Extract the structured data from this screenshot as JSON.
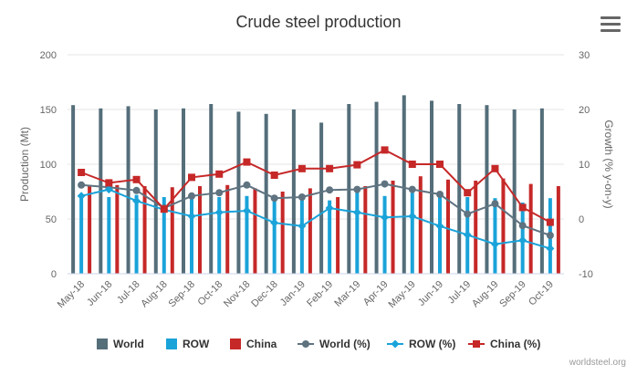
{
  "chart_data": {
    "type": "bar",
    "title": "Crude steel production",
    "ylabel": "Production (Mt)",
    "y2label": "Growth (% y-on-y)",
    "ylim": [
      0,
      200
    ],
    "yticks": [
      0,
      50,
      100,
      150,
      200
    ],
    "y2lim": [
      -10,
      30
    ],
    "y2ticks": [
      -10,
      0,
      10,
      20,
      30
    ],
    "categories": [
      "May-18",
      "Jun-18",
      "Jul-18",
      "Aug-18",
      "Sep-18",
      "Oct-18",
      "Nov-18",
      "Dec-18",
      "Jan-19",
      "Feb-19",
      "Mar-19",
      "Apr-19",
      "May-19",
      "Jun-19",
      "Jul-19",
      "Aug-19",
      "Sep-19",
      "Oct-19"
    ],
    "grid": true,
    "legend_placement": "bottom",
    "series": [
      {
        "name": "World",
        "kind": "bar",
        "axis": "left",
        "color": "#546e7a",
        "values": [
          154,
          151,
          153,
          150,
          151,
          155,
          148,
          146,
          150,
          138,
          155,
          157,
          163,
          158,
          155,
          154,
          150,
          151
        ]
      },
      {
        "name": "ROW",
        "kind": "bar",
        "axis": "left",
        "color": "#1aa3d9",
        "values": [
          71,
          70,
          72,
          70,
          68,
          70,
          71,
          70,
          70,
          67,
          76,
          71,
          74,
          73,
          70,
          69,
          65,
          69
        ]
      },
      {
        "name": "China",
        "kind": "bar",
        "axis": "left",
        "color": "#c62828",
        "values": [
          81,
          81,
          80,
          79,
          80,
          81,
          78,
          75,
          78,
          70,
          80,
          85,
          89,
          86,
          85,
          87,
          82,
          80
        ]
      },
      {
        "name": "World (%)",
        "kind": "line",
        "axis": "right",
        "color": "#5f7380",
        "marker": "circle",
        "values": [
          6.2,
          5.8,
          5.2,
          2.0,
          4.2,
          4.8,
          6.2,
          3.8,
          4.0,
          5.3,
          5.4,
          6.4,
          5.4,
          4.5,
          0.9,
          2.8,
          -1.2,
          -3.0
        ]
      },
      {
        "name": "ROW (%)",
        "kind": "line",
        "axis": "right",
        "color": "#1aa3d9",
        "marker": "diamond",
        "values": [
          4.2,
          5.4,
          3.3,
          1.7,
          0.5,
          1.2,
          1.5,
          -0.7,
          -1.3,
          2.0,
          1.2,
          0.3,
          0.5,
          -1.3,
          -2.9,
          -4.6,
          -3.9,
          -5.4
        ]
      },
      {
        "name": "China (%)",
        "kind": "line",
        "axis": "right",
        "color": "#c62828",
        "marker": "square",
        "values": [
          8.5,
          6.6,
          7.2,
          1.8,
          7.6,
          8.2,
          10.4,
          8.0,
          9.2,
          9.2,
          9.9,
          12.6,
          10.0,
          10.0,
          4.8,
          9.2,
          2.1,
          -0.6
        ]
      }
    ]
  },
  "legend": [
    {
      "label": "World",
      "color": "#546e7a",
      "shape": "bar"
    },
    {
      "label": "ROW",
      "color": "#1aa3d9",
      "shape": "bar"
    },
    {
      "label": "China",
      "color": "#c62828",
      "shape": "bar"
    },
    {
      "label": "World (%)",
      "color": "#5f7380",
      "shape": "line-circle"
    },
    {
      "label": "ROW (%)",
      "color": "#1aa3d9",
      "shape": "line-diamond"
    },
    {
      "label": "China (%)",
      "color": "#c62828",
      "shape": "line-square"
    }
  ],
  "menu_icon": "hamburger-menu-icon",
  "credit": "worldsteel.org"
}
